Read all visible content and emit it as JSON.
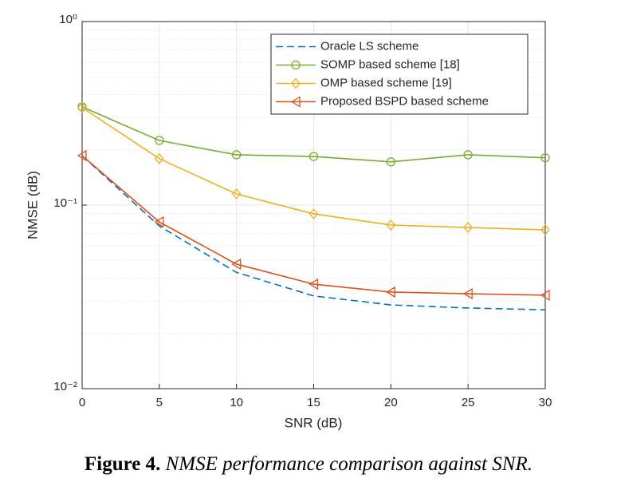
{
  "chart_data": {
    "type": "line",
    "xlabel": "SNR (dB)",
    "ylabel": "NMSE (dB)",
    "x": [
      0,
      5,
      10,
      15,
      20,
      25,
      30
    ],
    "xlim": [
      0,
      30
    ],
    "xticks": [
      0,
      5,
      10,
      15,
      20,
      25,
      30
    ],
    "ylim": [
      0.01,
      1
    ],
    "log_y": true,
    "yticks": [
      {
        "value": 0.01,
        "label": "10⁻²"
      },
      {
        "value": 0.1,
        "label": "10⁻¹"
      },
      {
        "value": 1,
        "label": "10⁰"
      }
    ],
    "grid": true,
    "minor_grid": true,
    "legend": "upper right",
    "series": [
      {
        "name": "Oracle LS scheme",
        "color": "#0072BD",
        "line_style": "dashed",
        "marker": "none",
        "values": [
          0.186,
          0.077,
          0.043,
          0.032,
          0.0286,
          0.0275,
          0.0269
        ]
      },
      {
        "name": "SOMP based scheme [18]",
        "color": "#77AC30",
        "line_style": "solid",
        "marker": "circle",
        "values": [
          0.343,
          0.225,
          0.188,
          0.184,
          0.172,
          0.188,
          0.181
        ]
      },
      {
        "name": "OMP based scheme [19]",
        "color": "#EDB120",
        "line_style": "solid",
        "marker": "diamond",
        "values": [
          0.34,
          0.179,
          0.115,
          0.0896,
          0.0779,
          0.0755,
          0.0733
        ]
      },
      {
        "name": "Proposed BSPD based scheme",
        "color": "#D95319",
        "line_style": "solid",
        "marker": "triangle-left",
        "values": [
          0.186,
          0.081,
          0.0477,
          0.0371,
          0.0336,
          0.0329,
          0.0323
        ]
      }
    ]
  },
  "caption": {
    "label": "Figure 4.",
    "text": "NMSE performance comparison against SNR."
  }
}
